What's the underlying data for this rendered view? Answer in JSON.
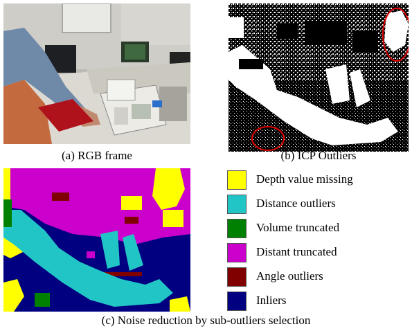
{
  "figure": {
    "panel_a": {
      "caption": "(a) RGB frame"
    },
    "panel_b": {
      "caption": "(b) ICP Outliers"
    },
    "panel_c": {
      "caption": "(c) Noise reduction by sub-outliers selection"
    }
  },
  "legend": {
    "items": [
      {
        "label": "Depth value missing",
        "color": "#ffff00"
      },
      {
        "label": "Distance outliers",
        "color": "#22c5c5"
      },
      {
        "label": "Volume truncated",
        "color": "#008000"
      },
      {
        "label": "Distant truncated",
        "color": "#cc00cc"
      },
      {
        "label": "Angle outliers",
        "color": "#800000"
      },
      {
        "label": "Inliers",
        "color": "#000080"
      }
    ]
  },
  "colors": {
    "outlier_highlight": "#e00000",
    "rgb_wall": "#c9c7c2",
    "rgb_desk": "#d9d6d0"
  }
}
